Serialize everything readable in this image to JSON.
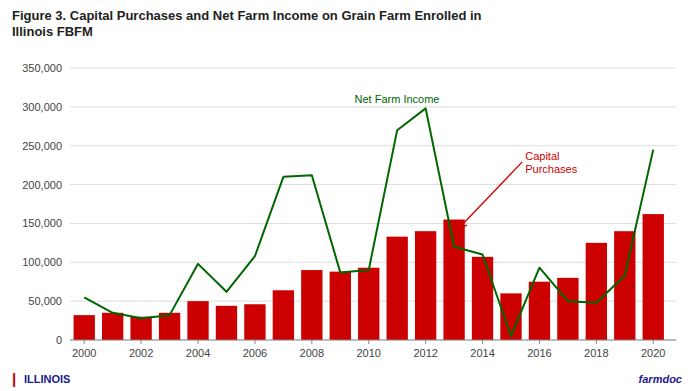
{
  "chart_data": {
    "type": "bar",
    "title": "Figure 3.  Capital Purchases and Net Farm Income on Grain Farm Enrolled in\nIllinois FBFM",
    "x": [
      2000,
      2001,
      2002,
      2003,
      2004,
      2005,
      2006,
      2007,
      2008,
      2009,
      2010,
      2011,
      2012,
      2013,
      2014,
      2015,
      2016,
      2017,
      2018,
      2019,
      2020
    ],
    "series": [
      {
        "type": "bar",
        "color": "#cc0000",
        "values": [
          32000,
          35000,
          30000,
          35000,
          50000,
          44000,
          46000,
          64000,
          90000,
          88000,
          93000,
          133000,
          140000,
          155000,
          107000,
          60000,
          75000,
          80000,
          125000,
          140000,
          162000
        ]
      },
      {
        "type": "line",
        "color": "#006600",
        "values": [
          55000,
          35000,
          28000,
          32000,
          98000,
          62000,
          108000,
          210000,
          212000,
          87000,
          90000,
          270000,
          298000,
          120000,
          110000,
          5000,
          93000,
          50000,
          48000,
          83000,
          245000
        ]
      }
    ],
    "xlim": [
      1999.5,
      2020.8
    ],
    "xticks": [
      2000,
      2002,
      2004,
      2006,
      2008,
      2010,
      2012,
      2014,
      2016,
      2018,
      2020
    ],
    "ylim": [
      0,
      350000
    ],
    "yticks": [
      0,
      {
        "value": 50000,
        "label": "50,000"
      },
      {
        "value": 100000,
        "label": "100,000"
      },
      {
        "value": 150000,
        "label": "150,000"
      },
      {
        "value": 200000,
        "label": "200,000"
      },
      {
        "value": 250000,
        "label": "250,000"
      },
      {
        "value": 300000,
        "label": "300,000"
      },
      {
        "value": 350000,
        "label": "350,000"
      }
    ],
    "grid": true,
    "annotations": [
      {
        "text": "Net Farm Income",
        "color": "#006600",
        "x": 2009.5,
        "y": 305000
      },
      {
        "text": "Capital\nPurchases",
        "color": "#cc0000",
        "x": 2015.5,
        "y": 215000,
        "arrow_x": 2013.2,
        "arrow_y": 145000
      }
    ],
    "footer_mark": {
      "text": "|",
      "color": "#cc0000"
    },
    "footer_left": {
      "text": "ILLINOIS",
      "color": "#1a1a8c"
    },
    "footer_right": {
      "text": "farmdoc",
      "color": "#1a1a8c"
    }
  }
}
